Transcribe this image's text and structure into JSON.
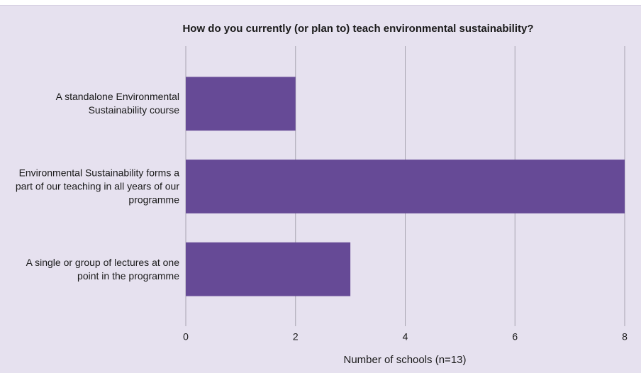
{
  "chart_data": {
    "type": "bar",
    "orientation": "horizontal",
    "title": "How do you currently (or plan to) teach environmental sustainability?",
    "x_label": "Number of schools (n=13)",
    "categories": [
      "A standalone Environmental Sustainability course",
      "Environmental Sustainability forms a part of our teaching in all years of our programme",
      "A single or group of lectures at one point in the programme"
    ],
    "values": [
      2,
      8,
      3
    ],
    "color": "#664a96",
    "xlim": [
      0,
      8
    ],
    "xticks": [
      0,
      2,
      4,
      6,
      8
    ],
    "grid": true
  }
}
